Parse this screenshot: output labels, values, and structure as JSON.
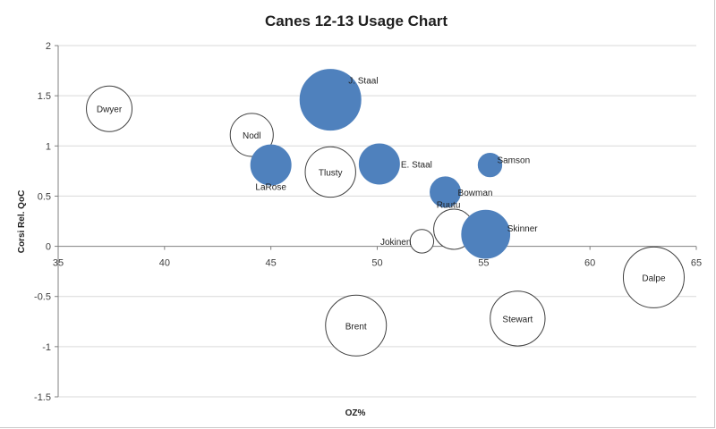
{
  "chart_data": {
    "type": "bubble",
    "title": "Canes 12-13 Usage Chart",
    "xlabel": "OZ%",
    "ylabel": "Corsi Rel. QoC",
    "xlim": [
      35,
      65
    ],
    "ylim": [
      -1.5,
      2
    ],
    "xticks": [
      35,
      40,
      45,
      50,
      55,
      60,
      65
    ],
    "yticks": [
      -1.5,
      -1,
      -0.5,
      0,
      0.5,
      1,
      1.5,
      2
    ],
    "ytick_labels": [
      "-1.5",
      "-1",
      "-0.5",
      "0",
      "0.5",
      "1",
      "1.5",
      "2"
    ],
    "grid": "horizontal",
    "legend": "none",
    "colors": {
      "positive": "#4f81bd",
      "negative_fill": "#ffffff",
      "negative_stroke": "#404040"
    },
    "points": [
      {
        "name": "J. Staal",
        "x": 47.8,
        "y": 1.46,
        "size": 8.0,
        "filled": true
      },
      {
        "name": "Dwyer",
        "x": 37.4,
        "y": 1.37,
        "size": 4.5,
        "filled": false
      },
      {
        "name": "Nodl",
        "x": 44.1,
        "y": 1.11,
        "size": 4.0,
        "filled": false
      },
      {
        "name": "LaRose",
        "x": 45.0,
        "y": 0.81,
        "size": 3.5,
        "filled": true
      },
      {
        "name": "Tlusty",
        "x": 47.8,
        "y": 0.74,
        "size": 5.5,
        "filled": false
      },
      {
        "name": "E. Staal",
        "x": 50.1,
        "y": 0.82,
        "size": 3.5,
        "filled": true
      },
      {
        "name": "Samson",
        "x": 55.3,
        "y": 0.81,
        "size": 1.2,
        "filled": true
      },
      {
        "name": "Bowman",
        "x": 53.2,
        "y": 0.54,
        "size": 2.0,
        "filled": true
      },
      {
        "name": "Ruutu",
        "x": 53.6,
        "y": 0.17,
        "size": 3.5,
        "filled": false
      },
      {
        "name": "Skinner",
        "x": 55.1,
        "y": 0.12,
        "size": 5.0,
        "filled": true
      },
      {
        "name": "Jokinen",
        "x": 52.1,
        "y": 0.05,
        "size": 1.2,
        "filled": false
      },
      {
        "name": "Dalpe",
        "x": 63.0,
        "y": -0.31,
        "size": 8.0,
        "filled": false
      },
      {
        "name": "Stewart",
        "x": 56.6,
        "y": -0.72,
        "size": 6.5,
        "filled": false
      },
      {
        "name": "Brent",
        "x": 49.0,
        "y": -0.79,
        "size": 8.0,
        "filled": false
      }
    ]
  }
}
